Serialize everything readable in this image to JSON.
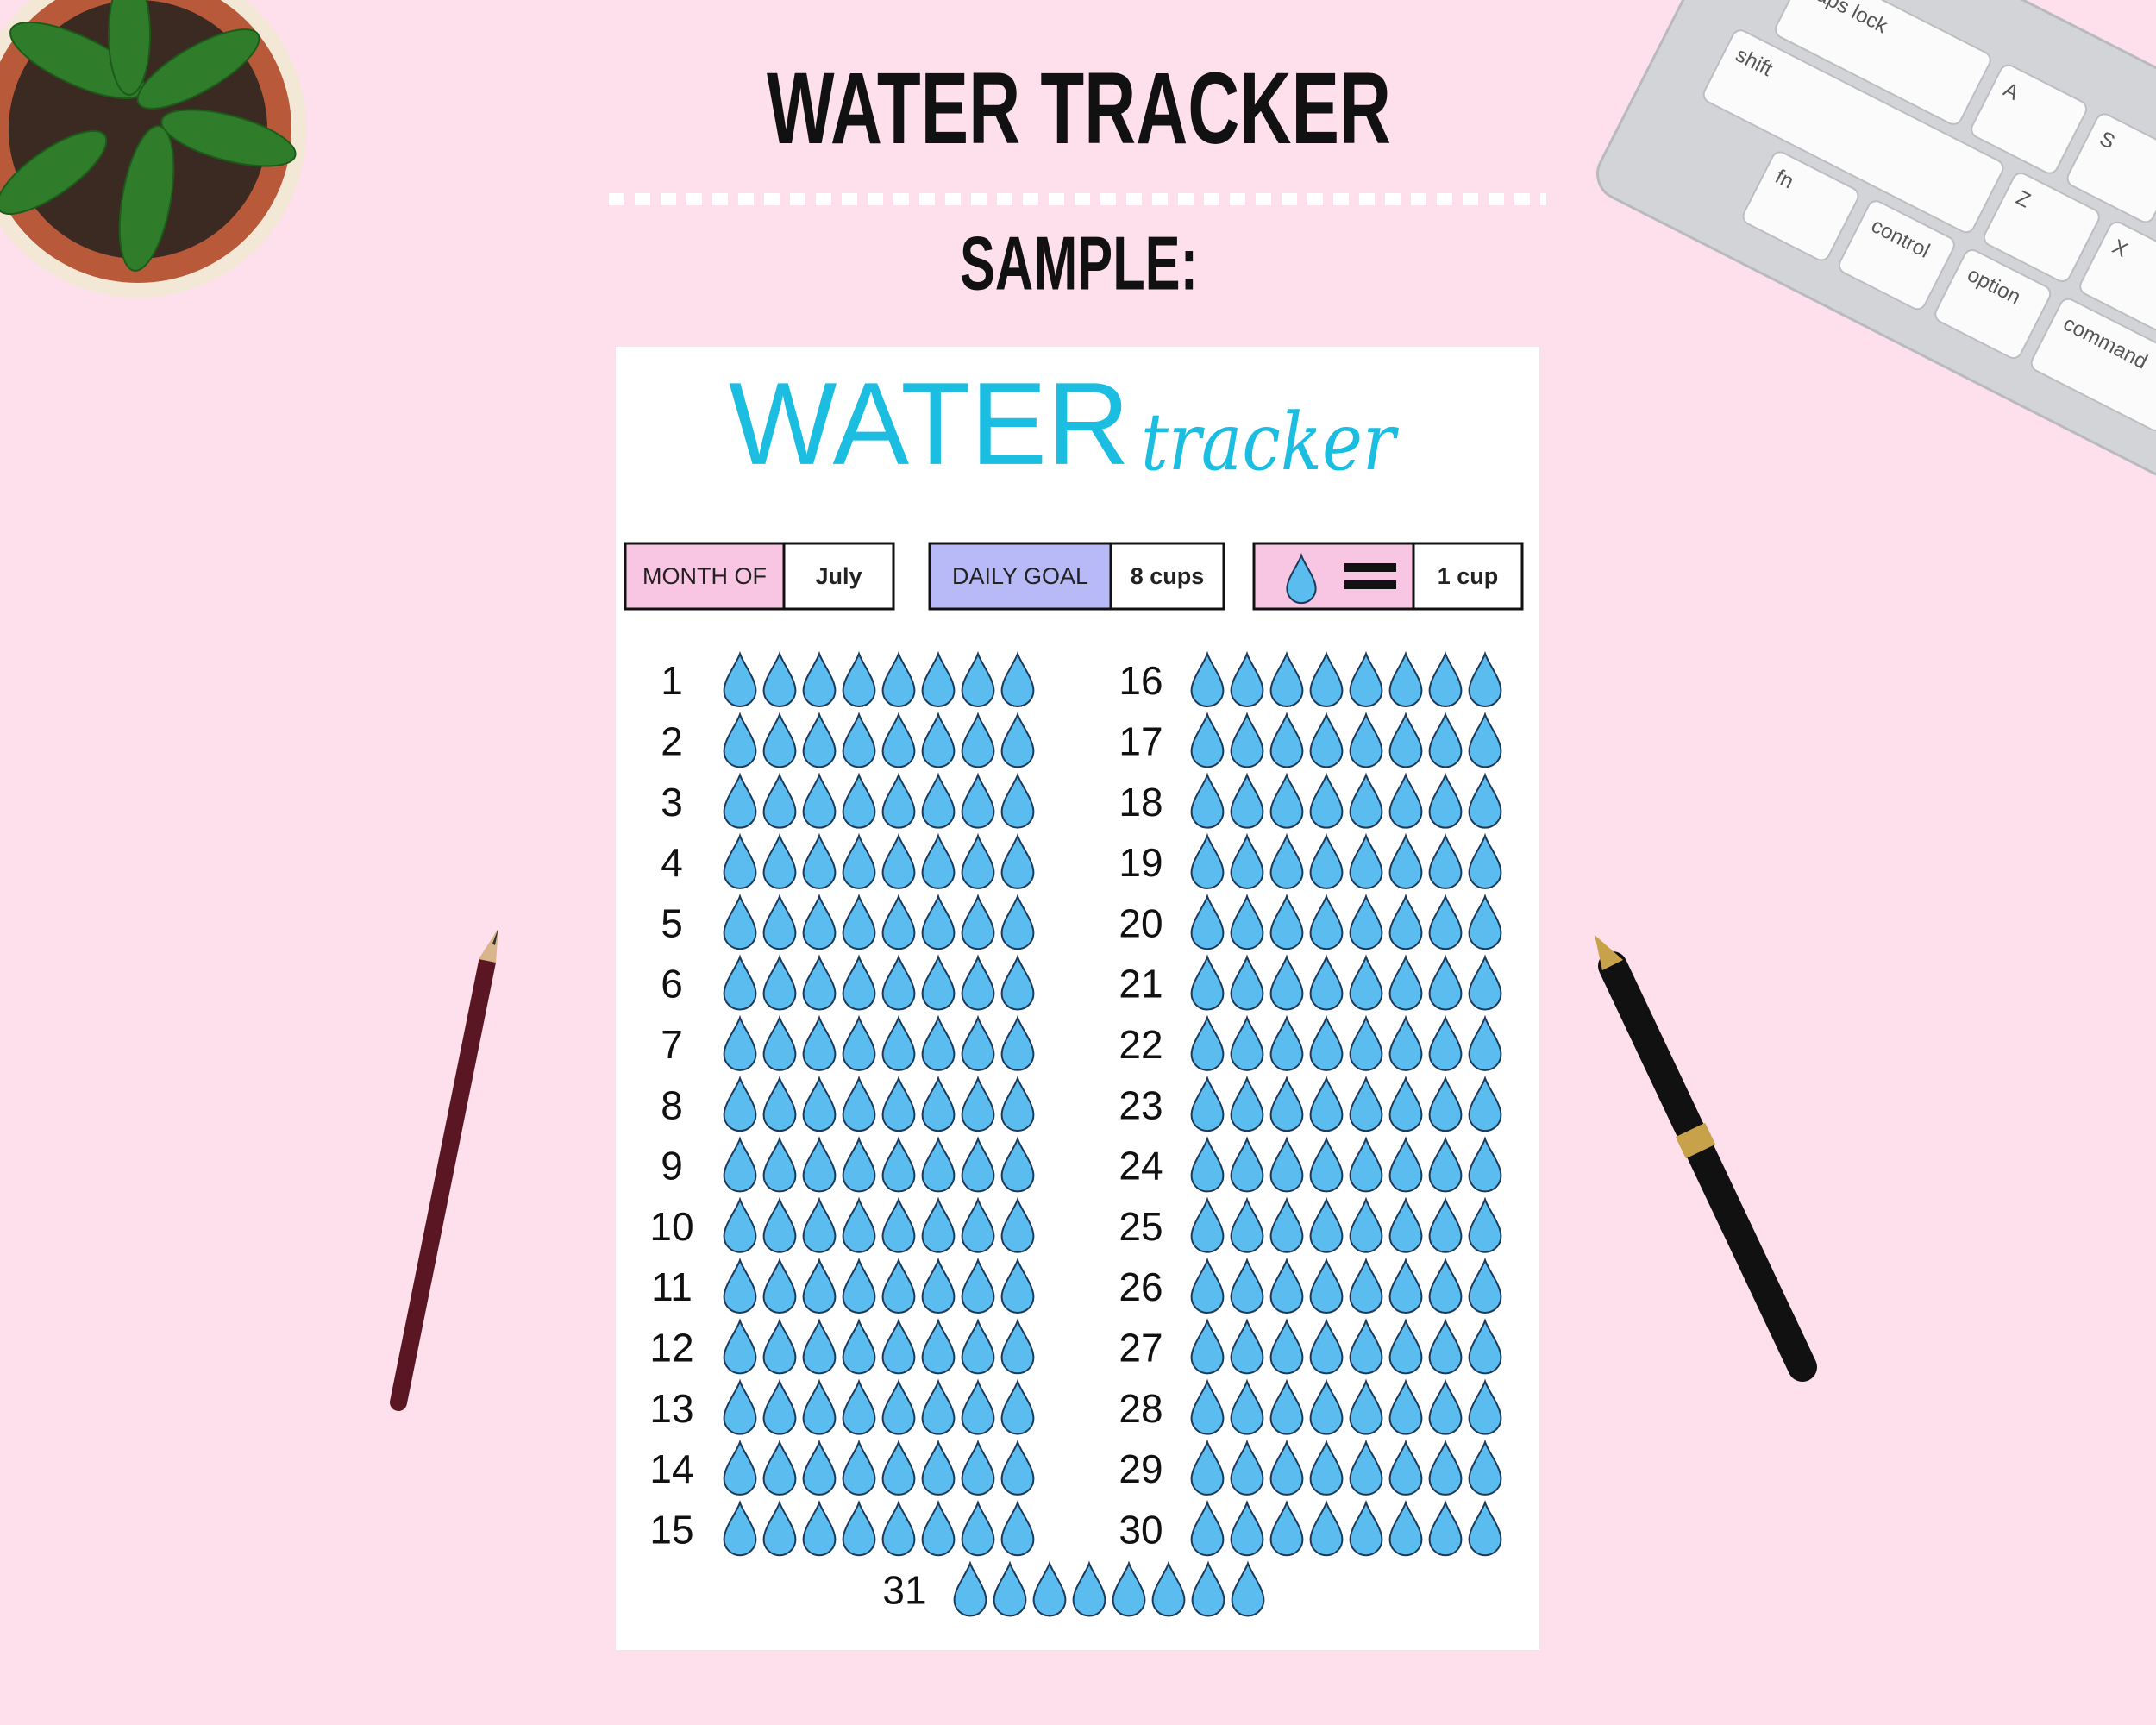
{
  "header": {
    "title": "WATER TRACKER",
    "subtitle": "SAMPLE:"
  },
  "sheet": {
    "title_main": "WATER",
    "title_script": "tracker",
    "fields": [
      {
        "label": "MONTH OF",
        "value": "July"
      },
      {
        "label": "DAILY GOAL",
        "value": "8 cups"
      },
      {
        "value": "1 cup"
      }
    ],
    "days": [
      1,
      2,
      3,
      4,
      5,
      6,
      7,
      8,
      9,
      10,
      11,
      12,
      13,
      14,
      15,
      16,
      17,
      18,
      19,
      20,
      21,
      22,
      23,
      24,
      25,
      26,
      27,
      28,
      29,
      30,
      31
    ]
  },
  "keyboard": {
    "keys": [
      "caps lock",
      "A",
      "S",
      "shift",
      "Z",
      "X",
      "fn",
      "control",
      "option",
      "command"
    ]
  }
}
